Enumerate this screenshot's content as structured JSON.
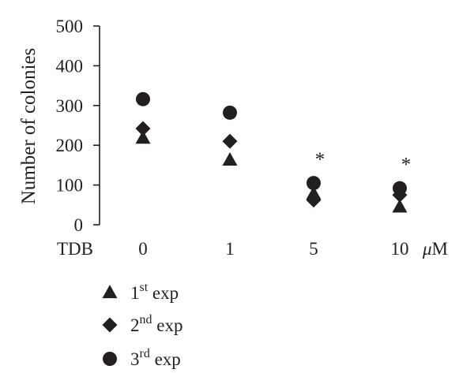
{
  "chart_data": {
    "type": "scatter",
    "ylabel": "Number of colonies",
    "xlabel": "TDB",
    "x_unit": "μM",
    "categories": [
      "0",
      "1",
      "5",
      "10"
    ],
    "ylim": [
      0,
      500
    ],
    "yticks": [
      "0",
      "100",
      "200",
      "300",
      "400",
      "500"
    ],
    "grid": false,
    "legend_position": "bottom-left",
    "series": [
      {
        "name_base": "1",
        "name_sup": "st",
        "name_tail": " exp",
        "marker": "triangle",
        "values": [
          218,
          163,
          78,
          45
        ]
      },
      {
        "name_base": "2",
        "name_sup": "nd",
        "name_tail": " exp",
        "marker": "diamond",
        "values": [
          242,
          210,
          62,
          75
        ]
      },
      {
        "name_base": "3",
        "name_sup": "rd",
        "name_tail": " exp",
        "marker": "circle",
        "values": [
          316,
          282,
          105,
          92
        ]
      }
    ],
    "annotations": [
      {
        "category": "5",
        "text": "*"
      },
      {
        "category": "10",
        "text": "*"
      }
    ],
    "marker_color": "#231f20"
  }
}
